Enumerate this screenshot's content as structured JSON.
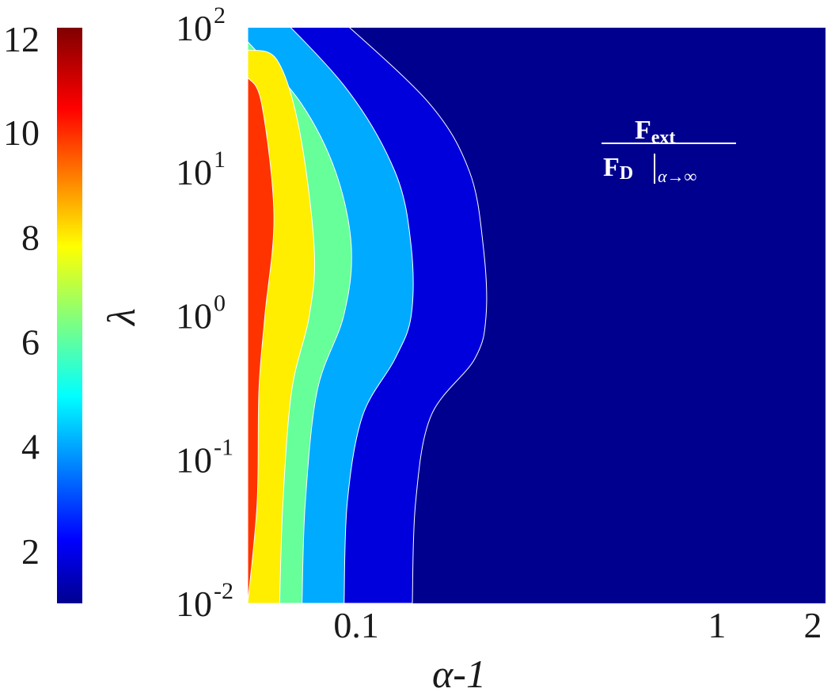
{
  "chart_data": {
    "type": "contour",
    "colormap": "jet",
    "colorbar": {
      "range": [
        1,
        12
      ],
      "ticks": [
        "2",
        "4",
        "6",
        "8",
        "10",
        "12"
      ],
      "tick_values": [
        2,
        4,
        6,
        8,
        10,
        12
      ]
    },
    "xaxis": {
      "label": "α-1",
      "scale": "log",
      "range": [
        0.05,
        2
      ],
      "ticks": [
        {
          "value": 0.1,
          "label": "0.1"
        },
        {
          "value": 1,
          "label": "1"
        },
        {
          "value": 2,
          "label": "2"
        }
      ]
    },
    "yaxis": {
      "label": "λ",
      "scale": "log",
      "range": [
        0.01,
        100
      ],
      "ticks": [
        {
          "value": 0.01,
          "base": "10",
          "exp": "-2"
        },
        {
          "value": 0.1,
          "base": "10",
          "exp": "-1"
        },
        {
          "value": 1,
          "base": "10",
          "exp": "0"
        },
        {
          "value": 10,
          "base": "10",
          "exp": "1"
        },
        {
          "value": 100,
          "base": "10",
          "exp": "2"
        }
      ]
    },
    "annotation": {
      "numerator": "F",
      "numerator_sub": "ext",
      "denominator": "F",
      "denominator_sub": "D",
      "eval_sub": "α→∞"
    },
    "contour_levels": [
      {
        "value": 12.0,
        "color": "#7a0000",
        "boundary": [
          [
            0.05,
            0.35
          ],
          [
            0.05,
            10
          ]
        ]
      },
      {
        "value": 10.5,
        "color": "#ff3300",
        "boundary": [
          [
            0.05,
            0.01
          ],
          [
            0.0531,
            0.05
          ],
          [
            0.0537,
            0.3
          ],
          [
            0.0558,
            1
          ],
          [
            0.0591,
            5
          ],
          [
            0.0546,
            30
          ],
          [
            0.05,
            45
          ]
        ]
      },
      {
        "value": 9.0,
        "color": "#ffee00",
        "boundary": [
          [
            0.0613,
            0.01
          ],
          [
            0.0626,
            0.05
          ],
          [
            0.0662,
            0.3
          ],
          [
            0.0741,
            1
          ],
          [
            0.0764,
            3
          ],
          [
            0.0694,
            20
          ],
          [
            0.0602,
            60
          ],
          [
            0.05,
            70
          ]
        ]
      },
      {
        "value": 7.5,
        "color": "#66ff99",
        "boundary": [
          [
            0.0707,
            0.01
          ],
          [
            0.0722,
            0.05
          ],
          [
            0.0779,
            0.3
          ],
          [
            0.0923,
            1
          ],
          [
            0.0969,
            3
          ],
          [
            0.0876,
            10
          ],
          [
            0.0702,
            30
          ],
          [
            0.05,
            80
          ]
        ]
      },
      {
        "value": 6.0,
        "color": "#00aaff",
        "boundary": [
          [
            0.0925,
            0.01
          ],
          [
            0.0944,
            0.05
          ],
          [
            0.104,
            0.2
          ],
          [
            0.128,
            0.5
          ],
          [
            0.142,
            1
          ],
          [
            0.142,
            3
          ],
          [
            0.128,
            10
          ],
          [
            0.0922,
            40
          ],
          [
            0.05,
            200
          ]
        ]
      },
      {
        "value": 4.5,
        "color": "#0000dd",
        "boundary": [
          [
            0.143,
            0.01
          ],
          [
            0.146,
            0.05
          ],
          [
            0.161,
            0.2
          ],
          [
            0.213,
            0.5
          ],
          [
            0.229,
            1
          ],
          [
            0.225,
            3
          ],
          [
            0.206,
            10
          ],
          [
            0.159,
            30
          ],
          [
            0.0885,
            120
          ]
        ]
      },
      {
        "value": 3.0,
        "color": "#00008f",
        "boundary": []
      }
    ]
  }
}
